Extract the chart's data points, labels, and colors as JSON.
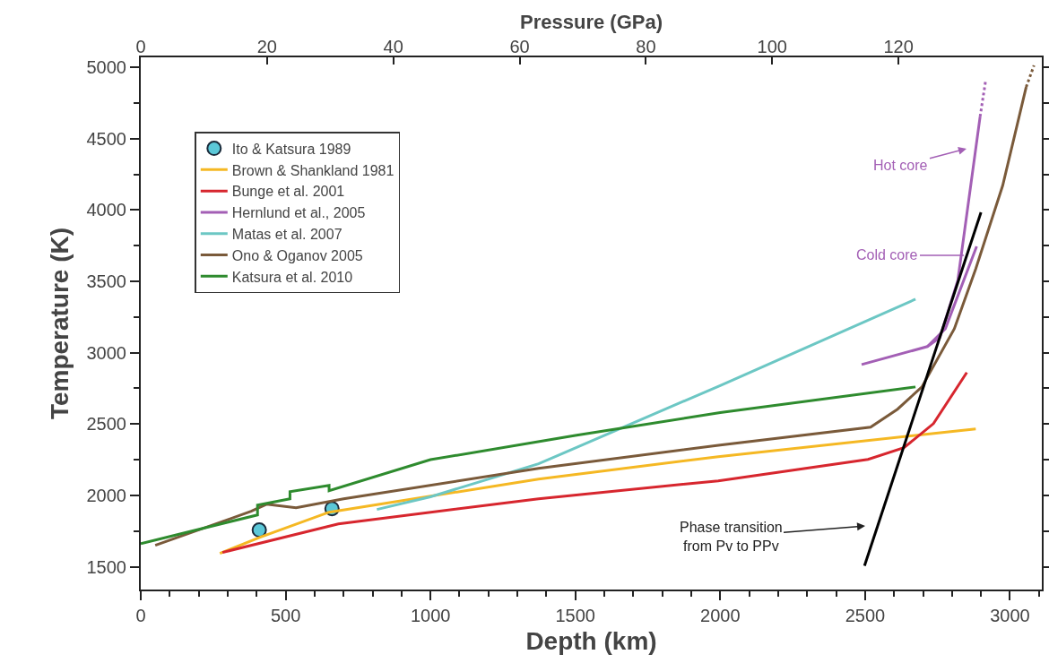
{
  "chart_data": {
    "type": "line",
    "xlabel": "Depth (km)",
    "ylabel": "Temperature (K)",
    "x2label": "Pressure (GPa)",
    "xlim": [
      0,
      3110
    ],
    "xticks": [
      0,
      500,
      1000,
      1500,
      2000,
      2500,
      3000
    ],
    "ylim": [
      1340,
      5070
    ],
    "yticks": [
      1500,
      2000,
      2500,
      3000,
      3500,
      4000,
      4500,
      5000
    ],
    "x2lim": [
      0,
      142.7
    ],
    "x2ticks": [
      0,
      20,
      40,
      60,
      80,
      100,
      120
    ],
    "grid": false,
    "legend": "top left",
    "line_style": "solid",
    "series": [
      {
        "name": "Ito & Katsura 1989",
        "type": "scatter",
        "marker": "circle",
        "color": "#5bc8d8",
        "x": [
          409,
          660
        ],
        "values": [
          1757,
          1907
        ]
      },
      {
        "name": "Brown & Shankland 1981",
        "color": "#f5b823",
        "x": [
          273,
          412,
          650,
          1373,
          1993,
          2882
        ],
        "values": [
          1594,
          1706,
          1882,
          2114,
          2271,
          2466
        ]
      },
      {
        "name": "Bunge et al. 2001",
        "color": "#d7262e",
        "x": [
          282,
          682,
          1373,
          1993,
          2510,
          2634,
          2736,
          2851
        ],
        "values": [
          1600,
          1800,
          1976,
          2102,
          2252,
          2334,
          2503,
          2861
        ]
      },
      {
        "name": "Hernlund et al., 2005",
        "color": "#a35fb5",
        "x": [
          2488,
          2715,
          2758,
          2820,
          2897
        ],
        "values": [
          2917,
          3043,
          3105,
          3507,
          4655
        ]
      },
      {
        "color": "#a35fb5",
        "x": [
          2715,
          2777,
          2885
        ],
        "values": [
          3043,
          3168,
          3745
        ]
      },
      {
        "color": "#a35fb5",
        "line_style": "dotted",
        "x": [
          2897,
          2916
        ],
        "values": [
          4655,
          4906
        ]
      },
      {
        "name": "Matas et al. 2007",
        "color": "#6cc7c4",
        "x": [
          815,
          1000,
          1373,
          2000,
          2674
        ],
        "values": [
          1901,
          1990,
          2221,
          2770,
          3375
        ]
      },
      {
        "name": "Ono & Oganov 2005",
        "color": "#7a5a3a",
        "x": [
          50,
          381,
          434,
          536,
          700,
          1373,
          2000,
          2519,
          2612,
          2696,
          2808,
          2882,
          2975,
          3056
        ],
        "values": [
          1650,
          1888,
          1938,
          1913,
          1976,
          2189,
          2353,
          2478,
          2604,
          2760,
          3168,
          3588,
          4172,
          4862
        ]
      },
      {
        "color": "#7a5a3a",
        "line_style": "dotted",
        "x": [
          3056,
          3083
        ],
        "values": [
          4862,
          5013
        ]
      },
      {
        "name": "Katsura et al. 2010",
        "color": "#2e8b2e",
        "x": [
          0,
          403,
          403,
          515,
          515,
          650,
          650,
          1000,
          1500,
          2000,
          2674
        ],
        "values": [
          1662,
          1863,
          1932,
          1976,
          2026,
          2070,
          2033,
          2250,
          2420,
          2580,
          2760
        ]
      },
      {
        "color": "#000000",
        "x": [
          2498,
          2900
        ],
        "values": [
          1506,
          3984
        ]
      }
    ],
    "annotations": [
      "Hot core",
      "Cold core",
      "Phase transition\nfrom Pv to PPv"
    ]
  }
}
